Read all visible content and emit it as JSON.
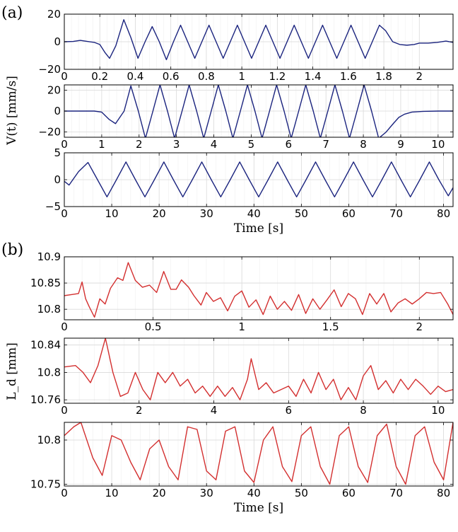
{
  "figure": {
    "panel_labels": [
      "(a)",
      "(b)"
    ],
    "ylabel_a": "V(t) [mm/s]",
    "ylabel_b": "L_d [mm]",
    "xlabel": "Time [s]"
  },
  "chart_data": [
    {
      "type": "line",
      "panel": "(a)",
      "subplot": 1,
      "color": "#1a237e",
      "xlim": [
        0,
        2.19
      ],
      "ylim": [
        -20,
        20
      ],
      "xticks": [
        0,
        0.2,
        0.4,
        0.6,
        0.8,
        1,
        1.2,
        1.4,
        1.6,
        1.8,
        2
      ],
      "xticklabels": [
        "0",
        "0.2",
        "0.4",
        "0.6",
        "0.8",
        "1",
        "1.2",
        "1.4",
        "1.6",
        "1.8",
        "2"
      ],
      "yticks": [
        -20,
        0,
        20
      ],
      "yticklabels": [
        "−20",
        "0",
        "20"
      ],
      "xlabel": "",
      "ylabel": "",
      "series": [
        {
          "x": [
            0,
            0.05,
            0.09,
            0.13,
            0.17,
            0.2,
            0.23,
            0.255,
            0.29,
            0.335,
            0.375,
            0.415,
            0.455,
            0.495,
            0.535,
            0.575,
            0.615,
            0.655,
            0.695,
            0.735,
            0.775,
            0.815,
            0.855,
            0.895,
            0.935,
            0.975,
            1.015,
            1.055,
            1.095,
            1.135,
            1.175,
            1.215,
            1.255,
            1.295,
            1.335,
            1.375,
            1.415,
            1.455,
            1.495,
            1.535,
            1.575,
            1.615,
            1.655,
            1.695,
            1.735,
            1.775,
            1.81,
            1.85,
            1.89,
            1.93,
            1.97,
            2.0,
            2.05,
            2.1,
            2.15,
            2.19
          ],
          "y": [
            0,
            0.2,
            1,
            0.2,
            -0.5,
            -2,
            -8,
            -12,
            -3,
            16,
            3,
            -12,
            0,
            11,
            0,
            -13,
            0,
            12,
            0,
            -12,
            0,
            12,
            0,
            -12,
            0,
            12,
            0,
            -12,
            0,
            12,
            0,
            -12,
            0,
            12,
            0,
            -12,
            0,
            12,
            0,
            -12,
            0,
            12,
            0,
            -12,
            0,
            12,
            8,
            0,
            -2,
            -2.5,
            -2,
            -1,
            -1,
            -0.5,
            0.5,
            -0.5
          ]
        }
      ]
    },
    {
      "type": "line",
      "panel": "(a)",
      "subplot": 2,
      "color": "#1a237e",
      "xlim": [
        0,
        10.4
      ],
      "ylim": [
        -25,
        25
      ],
      "xticks": [
        0,
        1,
        2,
        3,
        4,
        5,
        6,
        7,
        8,
        9,
        10
      ],
      "xticklabels": [
        "0",
        "1",
        "2",
        "3",
        "4",
        "5",
        "6",
        "7",
        "8",
        "9",
        "10"
      ],
      "yticks": [
        -20,
        0,
        20
      ],
      "yticklabels": [
        "−20",
        "0",
        "20"
      ],
      "xlabel": "",
      "ylabel": "",
      "series": [
        {
          "x": [
            0,
            0.8,
            1.0,
            1.2,
            1.37,
            1.6,
            1.78,
            1.98,
            2.17,
            2.37,
            2.56,
            2.76,
            2.95,
            3.15,
            3.34,
            3.54,
            3.73,
            3.93,
            4.12,
            4.32,
            4.51,
            4.71,
            4.9,
            5.1,
            5.29,
            5.49,
            5.68,
            5.88,
            6.07,
            6.27,
            6.46,
            6.66,
            6.85,
            7.05,
            7.24,
            7.44,
            7.63,
            7.83,
            8.02,
            8.22,
            8.41,
            8.61,
            8.8,
            8.95,
            9.1,
            9.3,
            9.6,
            10.0,
            10.4
          ],
          "y": [
            0,
            0,
            -1,
            -8,
            -12,
            0,
            24,
            0,
            -26,
            0,
            25,
            0,
            -26,
            0,
            25,
            0,
            -26,
            0,
            25,
            0,
            -26,
            0,
            25,
            0,
            -26,
            0,
            25,
            0,
            -26,
            0,
            25,
            0,
            -26,
            0,
            25,
            0,
            -26,
            0,
            25,
            0,
            -26,
            -20,
            -12,
            -6,
            -3,
            -1,
            -0.3,
            0,
            0
          ]
        }
      ]
    },
    {
      "type": "line",
      "panel": "(a)",
      "subplot": 3,
      "color": "#1a237e",
      "xlim": [
        0,
        82
      ],
      "ylim": [
        -5,
        5
      ],
      "xticks": [
        0,
        10,
        20,
        30,
        40,
        50,
        60,
        70,
        80
      ],
      "xticklabels": [
        "0",
        "10",
        "20",
        "30",
        "40",
        "50",
        "60",
        "70",
        "80"
      ],
      "yticks": [
        -5,
        0,
        5
      ],
      "yticklabels": [
        "−5",
        "0",
        "5"
      ],
      "xlabel": "Time [s]",
      "ylabel": "",
      "series": [
        {
          "x": [
            0,
            1,
            3,
            5,
            7,
            9,
            11,
            13,
            15,
            17,
            19,
            21,
            23,
            25,
            27,
            29,
            31,
            33,
            35,
            37,
            39,
            41,
            43,
            45,
            47,
            49,
            51,
            53,
            55,
            57,
            59,
            61,
            63,
            65,
            67,
            69,
            71,
            73,
            75,
            77,
            79,
            81,
            82
          ],
          "y": [
            -0.3,
            -1,
            1.5,
            3.2,
            0,
            -3.2,
            0,
            3.3,
            0,
            -3.2,
            0,
            3.3,
            0,
            -3.2,
            0,
            3.3,
            0,
            -3.2,
            0,
            3.3,
            0,
            -3.2,
            0,
            3.3,
            0,
            -3.2,
            0,
            3.3,
            0,
            -3.2,
            0,
            3.3,
            0,
            -3.2,
            0,
            3.3,
            0,
            -3.2,
            0,
            3.3,
            0,
            -3.0,
            -1.5
          ]
        }
      ]
    },
    {
      "type": "line",
      "panel": "(b)",
      "subplot": 1,
      "color": "#d32f2f",
      "xlim": [
        0,
        2.19
      ],
      "ylim": [
        10.78,
        10.9
      ],
      "xticks": [
        0,
        0.5,
        1,
        1.5,
        2
      ],
      "xticklabels": [
        "0",
        "0.5",
        "1",
        "1.5",
        "2"
      ],
      "yticks": [
        10.8,
        10.85,
        10.9
      ],
      "yticklabels": [
        "10.8",
        "10.85",
        "10.9"
      ],
      "xlabel": "",
      "ylabel": "",
      "series": [
        {
          "x": [
            0,
            0.04,
            0.08,
            0.1,
            0.12,
            0.14,
            0.17,
            0.2,
            0.23,
            0.26,
            0.3,
            0.33,
            0.36,
            0.4,
            0.44,
            0.48,
            0.52,
            0.56,
            0.6,
            0.63,
            0.66,
            0.7,
            0.73,
            0.77,
            0.8,
            0.84,
            0.88,
            0.92,
            0.96,
            1.0,
            1.04,
            1.08,
            1.12,
            1.16,
            1.2,
            1.24,
            1.28,
            1.32,
            1.36,
            1.4,
            1.44,
            1.48,
            1.52,
            1.56,
            1.6,
            1.64,
            1.68,
            1.72,
            1.76,
            1.8,
            1.84,
            1.88,
            1.92,
            1.96,
            2.0,
            2.04,
            2.08,
            2.12,
            2.16,
            2.19
          ],
          "y": [
            10.826,
            10.828,
            10.83,
            10.852,
            10.82,
            10.805,
            10.785,
            10.82,
            10.81,
            10.84,
            10.86,
            10.855,
            10.889,
            10.855,
            10.842,
            10.846,
            10.832,
            10.872,
            10.838,
            10.838,
            10.856,
            10.842,
            10.826,
            10.808,
            10.832,
            10.815,
            10.822,
            10.797,
            10.825,
            10.835,
            10.804,
            10.818,
            10.79,
            10.825,
            10.8,
            10.815,
            10.798,
            10.828,
            10.792,
            10.82,
            10.8,
            10.818,
            10.837,
            10.805,
            10.83,
            10.82,
            10.79,
            10.83,
            10.81,
            10.83,
            10.795,
            10.812,
            10.82,
            10.81,
            10.82,
            10.832,
            10.83,
            10.832,
            10.81,
            10.79
          ]
        }
      ]
    },
    {
      "type": "line",
      "panel": "(b)",
      "subplot": 2,
      "color": "#d32f2f",
      "xlim": [
        0,
        10.4
      ],
      "ylim": [
        10.755,
        10.85
      ],
      "xticks": [
        0,
        2,
        4,
        6,
        8,
        10
      ],
      "xticklabels": [
        "0",
        "2",
        "4",
        "6",
        "8",
        "10"
      ],
      "yticks": [
        10.76,
        10.8,
        10.84
      ],
      "yticklabels": [
        "10.76",
        "10.8",
        "10.84"
      ],
      "xlabel": "",
      "ylabel": "",
      "series": [
        {
          "x": [
            0,
            0.3,
            0.5,
            0.7,
            0.9,
            1.1,
            1.3,
            1.5,
            1.7,
            1.9,
            2.1,
            2.3,
            2.5,
            2.7,
            2.9,
            3.1,
            3.3,
            3.5,
            3.7,
            3.9,
            4.1,
            4.3,
            4.5,
            4.7,
            4.9,
            5.0,
            5.2,
            5.4,
            5.6,
            5.8,
            6.0,
            6.2,
            6.4,
            6.6,
            6.8,
            7.0,
            7.2,
            7.4,
            7.6,
            7.8,
            8.0,
            8.2,
            8.4,
            8.6,
            8.8,
            9.0,
            9.2,
            9.4,
            9.6,
            9.8,
            10.0,
            10.2,
            10.4
          ],
          "y": [
            10.808,
            10.81,
            10.8,
            10.785,
            10.81,
            10.85,
            10.8,
            10.765,
            10.77,
            10.8,
            10.775,
            10.76,
            10.8,
            10.785,
            10.8,
            10.78,
            10.79,
            10.77,
            10.78,
            10.765,
            10.78,
            10.765,
            10.778,
            10.76,
            10.79,
            10.82,
            10.775,
            10.785,
            10.77,
            10.775,
            10.78,
            10.765,
            10.79,
            10.77,
            10.8,
            10.775,
            10.79,
            10.76,
            10.778,
            10.76,
            10.795,
            10.81,
            10.775,
            10.788,
            10.77,
            10.79,
            10.775,
            10.79,
            10.78,
            10.768,
            10.78,
            10.772,
            10.775
          ]
        }
      ]
    },
    {
      "type": "line",
      "panel": "(b)",
      "subplot": 3,
      "color": "#d32f2f",
      "xlim": [
        0,
        82
      ],
      "ylim": [
        10.748,
        10.82
      ],
      "xticks": [
        0,
        10,
        20,
        30,
        40,
        50,
        60,
        70,
        80
      ],
      "xticklabels": [
        "0",
        "10",
        "20",
        "30",
        "40",
        "50",
        "60",
        "70",
        "80"
      ],
      "yticks": [
        10.75,
        10.8
      ],
      "yticklabels": [
        "10.75",
        "10.8"
      ],
      "xlabel": "Time [s]",
      "ylabel": "",
      "series": [
        {
          "x": [
            0,
            2,
            3.5,
            6,
            8,
            10,
            12,
            14,
            16,
            18,
            20,
            22,
            24,
            26,
            28,
            30,
            32,
            34,
            36,
            38,
            40,
            42,
            44,
            46,
            48,
            50,
            52,
            54,
            56,
            58,
            60,
            62,
            64,
            66,
            68,
            70,
            72,
            74,
            76,
            78,
            80,
            82
          ],
          "y": [
            10.805,
            10.815,
            10.82,
            10.78,
            10.76,
            10.805,
            10.8,
            10.775,
            10.755,
            10.79,
            10.8,
            10.77,
            10.755,
            10.815,
            10.812,
            10.765,
            10.755,
            10.81,
            10.815,
            10.765,
            10.752,
            10.8,
            10.815,
            10.77,
            10.753,
            10.805,
            10.815,
            10.77,
            10.75,
            10.805,
            10.815,
            10.77,
            10.752,
            10.805,
            10.818,
            10.77,
            10.75,
            10.805,
            10.815,
            10.775,
            10.755,
            10.82
          ]
        }
      ]
    }
  ]
}
